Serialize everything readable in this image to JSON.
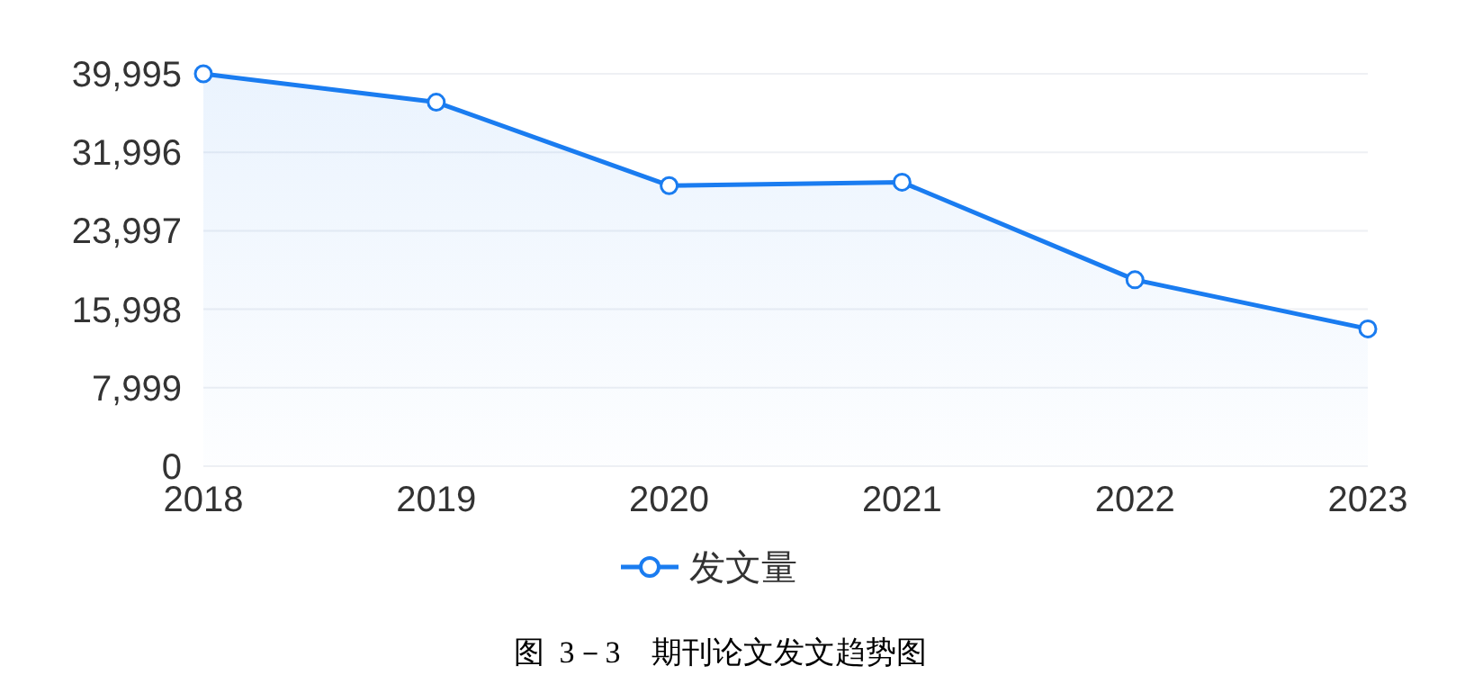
{
  "chart_data": {
    "type": "area",
    "categories": [
      "2018",
      "2019",
      "2020",
      "2021",
      "2022",
      "2023"
    ],
    "series": [
      {
        "name": "发文量",
        "color": "#1a7cf0",
        "values": [
          39995,
          37100,
          28600,
          28950,
          19000,
          14000
        ]
      }
    ],
    "ylim": [
      0,
      39995
    ],
    "yticks": [
      {
        "value": 0,
        "label": "0"
      },
      {
        "value": 7999,
        "label": "7,999"
      },
      {
        "value": 15998,
        "label": "15,998"
      },
      {
        "value": 23997,
        "label": "23,997"
      },
      {
        "value": 31996,
        "label": "31,996"
      },
      {
        "value": 39995,
        "label": "39,995"
      }
    ],
    "grid": "y",
    "marker": "circle",
    "legend": "bottom",
    "annotations": [
      "图  3－3    期刊论文发文趋势图"
    ]
  }
}
